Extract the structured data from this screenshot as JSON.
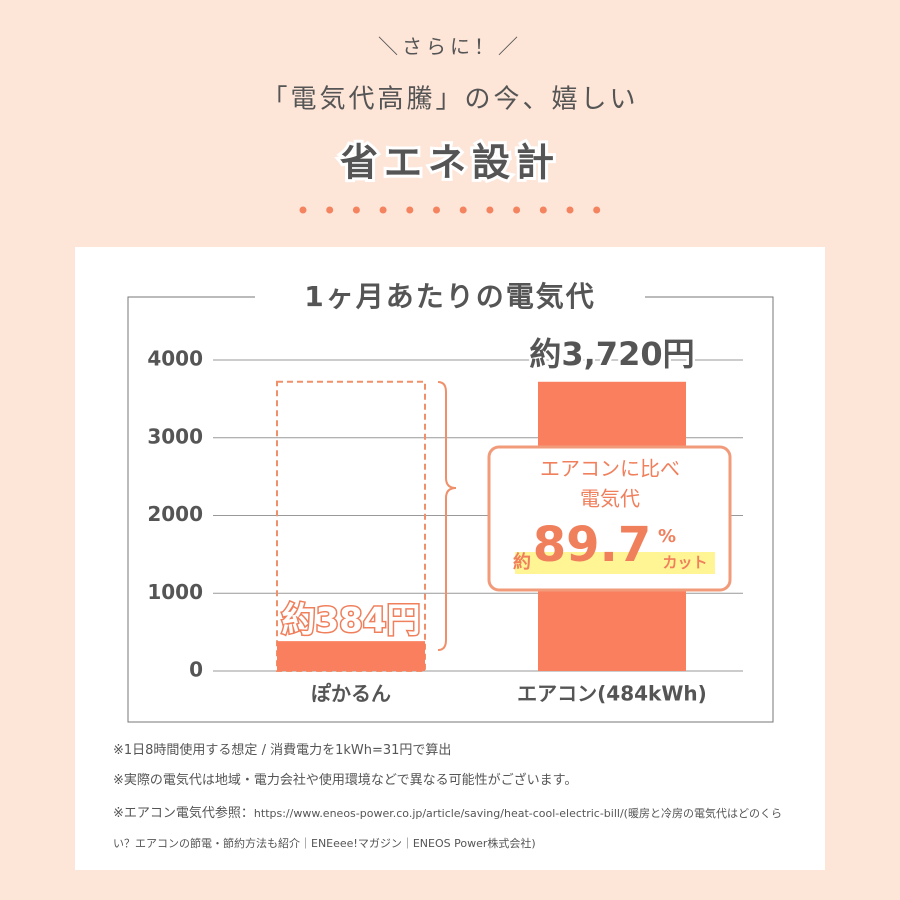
{
  "header": {
    "kicker": "＼さらに！／",
    "lead": "「電気代高騰」の今、嬉しい",
    "title": "省エネ設計"
  },
  "chart_data": {
    "type": "bar",
    "title": "1ヶ月あたりの電気代",
    "categories": [
      "ぽかるん",
      "エアコン(484kWh)"
    ],
    "values": [
      384,
      3720
    ],
    "value_labels": [
      "約384円",
      "約3,720円"
    ],
    "color": "#fa7f5e",
    "ylim": [
      0,
      4000
    ],
    "yticks": [
      0,
      1000,
      2000,
      3000,
      4000
    ],
    "grid": true
  },
  "callout": {
    "line1": "エアコンに比べ",
    "line2": "電気代",
    "prefix": "約",
    "value": "89.7",
    "unit": "%",
    "suffix": "カット"
  },
  "notes": [
    "※1日8時間使用する想定 / 消費電力を1kWh=31円で算出",
    "※実際の電気代は地域・電力会社や使用環境などで異なる可能性がございます。"
  ],
  "reference": {
    "label": "※エアコン電気代参照：",
    "text": "https://www.eneos-power.co.jp/article/saving/heat-cool-electric-bill/(暖房と冷房の電気代はどのくらい？エアコンの節電・節約方法も紹介｜ENEeee!マガジン｜ENEOS Power株式会社)"
  }
}
